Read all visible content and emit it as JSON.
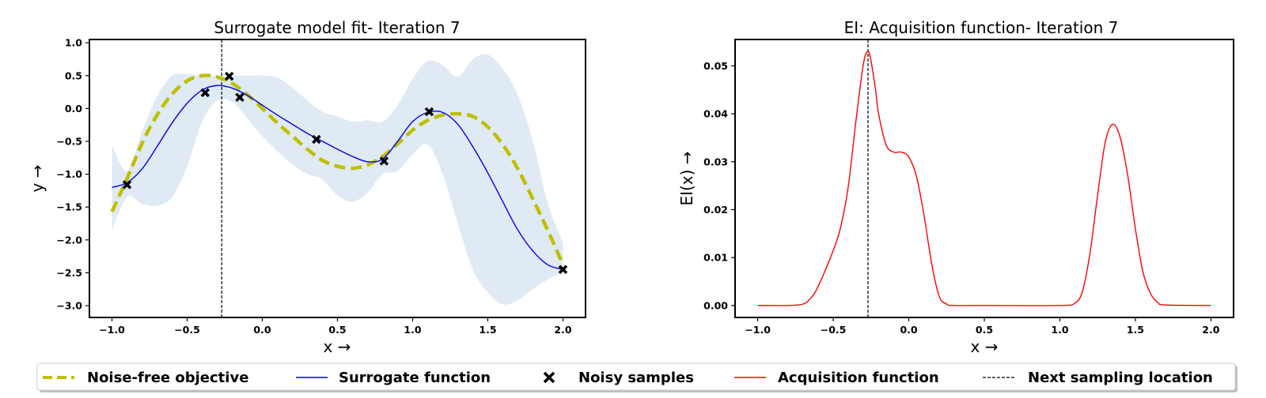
{
  "chart_data": [
    {
      "type": "line",
      "title": "Surrogate model fit- Iteration 7",
      "xlabel": "x →",
      "ylabel": "y →",
      "xlim": [
        -1.15,
        2.15
      ],
      "ylim": [
        -3.18,
        1.05
      ],
      "xticks": [
        -1.0,
        -0.5,
        0.0,
        0.5,
        1.0,
        1.5,
        2.0
      ],
      "xtick_labels": [
        "−1.0",
        "−0.5",
        "0.0",
        "0.5",
        "1.0",
        "1.5",
        "2.0"
      ],
      "yticks": [
        1.0,
        0.5,
        0.0,
        -0.5,
        -1.0,
        -1.5,
        -2.0,
        -2.5,
        -3.0
      ],
      "ytick_labels": [
        "1.0",
        "0.5",
        "0.0",
        "−0.5",
        "−1.0",
        "−1.5",
        "−2.0",
        "−2.5",
        "−3.0"
      ],
      "grid": false,
      "series": [
        {
          "name": "Noise-free objective",
          "style": "dashed",
          "color": "#bfbf00",
          "x": [
            -1.0,
            -0.9,
            -0.8,
            -0.7,
            -0.6,
            -0.5,
            -0.4,
            -0.3,
            -0.2,
            -0.1,
            0.0,
            0.1,
            0.2,
            0.3,
            0.4,
            0.5,
            0.6,
            0.7,
            0.8,
            0.9,
            1.0,
            1.1,
            1.2,
            1.3,
            1.4,
            1.5,
            1.6,
            1.7,
            1.8,
            1.9,
            2.0
          ],
          "y": [
            -1.57,
            -1.07,
            -0.53,
            -0.1,
            0.22,
            0.42,
            0.5,
            0.48,
            0.38,
            0.21,
            0.0,
            -0.22,
            -0.42,
            -0.62,
            -0.79,
            -0.88,
            -0.91,
            -0.86,
            -0.73,
            -0.54,
            -0.33,
            -0.18,
            -0.1,
            -0.08,
            -0.12,
            -0.28,
            -0.55,
            -0.92,
            -1.38,
            -1.86,
            -2.38
          ]
        },
        {
          "name": "Surrogate function",
          "style": "solid",
          "color": "#0000ee",
          "x": [
            -1.0,
            -0.9,
            -0.8,
            -0.7,
            -0.6,
            -0.5,
            -0.4,
            -0.3,
            -0.2,
            -0.1,
            0.0,
            0.1,
            0.2,
            0.3,
            0.4,
            0.5,
            0.6,
            0.7,
            0.8,
            0.9,
            1.0,
            1.1,
            1.2,
            1.3,
            1.4,
            1.5,
            1.6,
            1.7,
            1.8,
            1.9,
            2.0
          ],
          "y": [
            -1.2,
            -1.13,
            -0.92,
            -0.58,
            -0.22,
            0.08,
            0.28,
            0.35,
            0.31,
            0.2,
            0.05,
            -0.1,
            -0.24,
            -0.38,
            -0.5,
            -0.62,
            -0.73,
            -0.81,
            -0.77,
            -0.5,
            -0.2,
            -0.06,
            -0.06,
            -0.24,
            -0.58,
            -0.98,
            -1.42,
            -1.85,
            -2.17,
            -2.38,
            -2.45
          ]
        },
        {
          "name": "Noisy samples",
          "style": "markers",
          "color": "#000000",
          "x": [
            -0.9,
            -0.38,
            -0.22,
            -0.15,
            0.36,
            0.81,
            1.11,
            2.0
          ],
          "y": [
            -1.16,
            0.24,
            0.49,
            0.17,
            -0.47,
            -0.8,
            -0.05,
            -2.45
          ]
        }
      ],
      "band": {
        "color": "#dfeaf4",
        "x": [
          -1.0,
          -0.9,
          -0.8,
          -0.7,
          -0.6,
          -0.5,
          -0.4,
          -0.3,
          -0.2,
          -0.1,
          0.0,
          0.1,
          0.2,
          0.3,
          0.4,
          0.5,
          0.6,
          0.7,
          0.8,
          0.9,
          1.0,
          1.1,
          1.2,
          1.3,
          1.4,
          1.5,
          1.6,
          1.7,
          1.8,
          1.9,
          2.0
        ],
        "upper": [
          -0.55,
          -0.95,
          -0.35,
          0.18,
          0.5,
          0.52,
          0.5,
          0.5,
          0.5,
          0.5,
          0.5,
          0.47,
          0.32,
          0.12,
          -0.05,
          -0.12,
          -0.2,
          -0.18,
          -0.2,
          0.05,
          0.45,
          0.72,
          0.66,
          0.48,
          0.75,
          0.82,
          0.6,
          0.2,
          -0.5,
          -1.45,
          -2.05
        ],
        "lower": [
          -1.85,
          -1.35,
          -1.45,
          -1.48,
          -1.35,
          -0.88,
          -0.2,
          0.12,
          0.1,
          -0.15,
          -0.42,
          -0.65,
          -0.85,
          -1.0,
          -1.08,
          -1.32,
          -1.42,
          -1.28,
          -1.0,
          -0.95,
          -0.7,
          -0.55,
          -1.0,
          -1.75,
          -2.45,
          -2.8,
          -2.98,
          -2.92,
          -2.75,
          -2.6,
          -2.5
        ]
      },
      "vline": {
        "x": -0.27,
        "name": "Next sampling location"
      }
    },
    {
      "type": "line",
      "title": "EI: Acquisition function- Iteration 7",
      "xlabel": "x →",
      "ylabel": "EI(x) →",
      "xlim": [
        -1.15,
        2.15
      ],
      "ylim": [
        -0.0025,
        0.0555
      ],
      "xticks": [
        -1.0,
        -0.5,
        0.0,
        0.5,
        1.0,
        1.5,
        2.0
      ],
      "xtick_labels": [
        "−1.0",
        "−0.5",
        "0.0",
        "0.5",
        "1.0",
        "1.5",
        "2.0"
      ],
      "yticks": [
        0.0,
        0.01,
        0.02,
        0.03,
        0.04,
        0.05
      ],
      "ytick_labels": [
        "0.00",
        "0.01",
        "0.02",
        "0.03",
        "0.04",
        "0.05"
      ],
      "grid": false,
      "series": [
        {
          "name": "Acquisition function",
          "style": "solid",
          "color": "#ff0000",
          "x": [
            -1.0,
            -0.8,
            -0.7,
            -0.65,
            -0.6,
            -0.5,
            -0.45,
            -0.4,
            -0.35,
            -0.3,
            -0.27,
            -0.25,
            -0.22,
            -0.2,
            -0.15,
            -0.1,
            -0.05,
            0.0,
            0.05,
            0.1,
            0.15,
            0.2,
            0.25,
            0.3,
            0.5,
            1.0,
            1.1,
            1.15,
            1.2,
            1.25,
            1.3,
            1.35,
            1.4,
            1.45,
            1.5,
            1.55,
            1.6,
            1.65,
            1.7,
            2.0
          ],
          "y": [
            0.0,
            0.0,
            0.0003,
            0.0015,
            0.004,
            0.0115,
            0.0165,
            0.025,
            0.0385,
            0.0505,
            0.053,
            0.051,
            0.045,
            0.04,
            0.0335,
            0.032,
            0.032,
            0.031,
            0.027,
            0.019,
            0.009,
            0.002,
            0.0003,
            0.0,
            0.0,
            0.0,
            0.0005,
            0.003,
            0.011,
            0.023,
            0.034,
            0.0378,
            0.035,
            0.027,
            0.016,
            0.007,
            0.0025,
            0.0006,
            0.0001,
            0.0
          ]
        }
      ],
      "vline": {
        "x": -0.27,
        "name": "Next sampling location"
      }
    }
  ],
  "legend": {
    "placement": "bottom",
    "items": [
      {
        "label": "Noise-free objective",
        "symbol": "dashed-line",
        "color": "#bfbf00"
      },
      {
        "label": "Surrogate function",
        "symbol": "solid-line",
        "color": "#0000ee"
      },
      {
        "label": "Noisy samples",
        "symbol": "x-marker",
        "color": "#000000"
      },
      {
        "label": "Acquisition function",
        "symbol": "solid-line",
        "color": "#ff0000"
      },
      {
        "label": "Next sampling location",
        "symbol": "thin-dashed-line",
        "color": "#000000"
      }
    ]
  }
}
